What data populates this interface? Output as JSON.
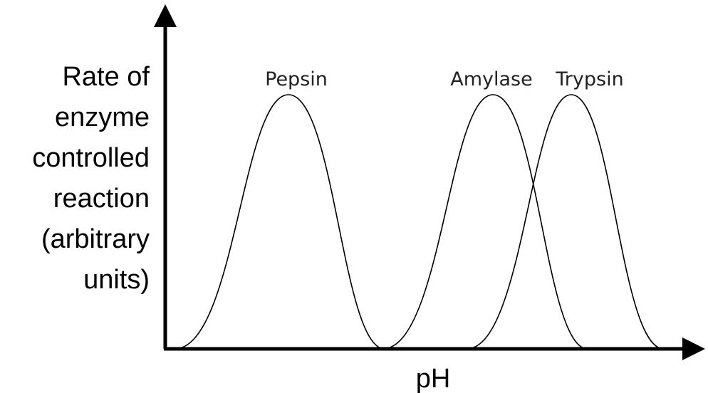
{
  "y_axis_label": [
    "Rate of",
    "enzyme",
    "controlled",
    "reaction",
    "(arbitrary",
    "units)"
  ],
  "x_axis_label": "pH",
  "curves": [
    {
      "label": "Pepsin"
    },
    {
      "label": "Amylase"
    },
    {
      "label": "Trypsin"
    }
  ]
}
